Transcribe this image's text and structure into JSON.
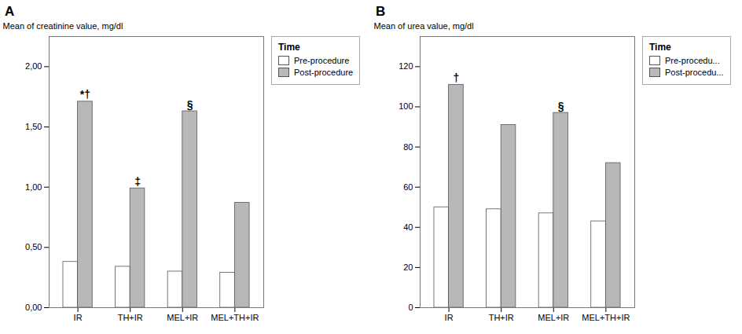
{
  "chart_data": [
    {
      "type": "bar",
      "title": "A",
      "ylabel": "Mean of creatinine value, mg/dl",
      "categories": [
        "IR",
        "TH+IR",
        "MEL+IR",
        "MEL+TH+IR"
      ],
      "series": [
        {
          "name": "Pre-procedure",
          "color": "#ffffff",
          "values": [
            0.38,
            0.34,
            0.3,
            0.29
          ]
        },
        {
          "name": "Post-procedure",
          "color": "#b8b8b8",
          "values": [
            1.71,
            0.99,
            1.63,
            0.87
          ]
        }
      ],
      "ylim": [
        0,
        2.25
      ],
      "yticks": [
        {
          "value": 0.0,
          "label": "0,00"
        },
        {
          "value": 0.5,
          "label": "0,50"
        },
        {
          "value": 1.0,
          "label": "1,00"
        },
        {
          "value": 1.5,
          "label": "1,50"
        },
        {
          "value": 2.0,
          "label": "2,00"
        }
      ],
      "legend_title": "Time",
      "legend": "right",
      "annotations": [
        {
          "text": "*†",
          "category": "IR",
          "series": "Post-procedure"
        },
        {
          "text": "‡",
          "category": "TH+IR",
          "series": "Post-procedure"
        },
        {
          "text": "§",
          "category": "MEL+IR",
          "series": "Post-procedure"
        }
      ]
    },
    {
      "type": "bar",
      "title": "B",
      "ylabel": "Mean of urea value, mg/dl",
      "categories": [
        "IR",
        "TH+IR",
        "MEL+IR",
        "MEL+TH+IR"
      ],
      "series": [
        {
          "name": "Pre-procedu...",
          "color": "#ffffff",
          "values": [
            50,
            49,
            47,
            43
          ]
        },
        {
          "name": "Post-procedu...",
          "color": "#b8b8b8",
          "values": [
            111,
            91,
            97,
            72
          ]
        }
      ],
      "ylim": [
        0,
        135
      ],
      "yticks": [
        0,
        20,
        40,
        60,
        80,
        100,
        120
      ],
      "legend_title": "Time",
      "legend": "right",
      "annotations": [
        {
          "text": "†",
          "category": "IR",
          "series": "Post-procedu..."
        },
        {
          "text": "§",
          "category": "MEL+IR",
          "series": "Post-procedu..."
        }
      ]
    }
  ]
}
